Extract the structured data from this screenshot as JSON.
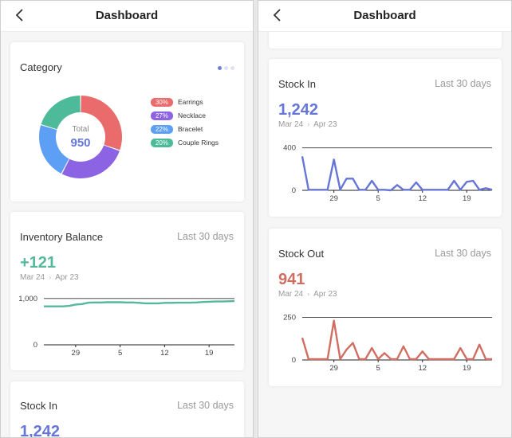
{
  "screens": [
    {
      "nav": {
        "title": "Dashboard"
      },
      "category": {
        "title": "Category",
        "total_label": "Total",
        "total_value": "950",
        "legend": [
          {
            "percent": "30%",
            "label": "Earrings",
            "value": 30,
            "color": "#e96b6b"
          },
          {
            "percent": "27%",
            "label": "Necklace",
            "value": 27,
            "color": "#8c63e3"
          },
          {
            "percent": "22%",
            "label": "Bracelet",
            "value": 22,
            "color": "#5c9ff5"
          },
          {
            "percent": "20%",
            "label": "Couple Rings",
            "value": 20,
            "color": "#4dbb9a"
          }
        ]
      },
      "inventory": {
        "title": "Inventory Balance",
        "period": "Last 30 days",
        "value": "+121",
        "date_from": "Mar 24",
        "date_to": "Apr 23",
        "color": "#55b89a"
      },
      "stock_in_peek": {
        "title": "Stock In",
        "period": "Last 30 days",
        "value": "1,242"
      }
    },
    {
      "nav": {
        "title": "Dashboard"
      },
      "stock_in": {
        "title": "Stock In",
        "period": "Last 30 days",
        "value": "1,242",
        "date_from": "Mar 24",
        "date_to": "Apr 23",
        "color": "#6676d6"
      },
      "stock_out": {
        "title": "Stock Out",
        "period": "Last 30 days",
        "value": "941",
        "date_from": "Mar 24",
        "date_to": "Apr 23",
        "color": "#d16e62"
      }
    }
  ],
  "chart_data": [
    {
      "type": "pie",
      "title": "Category",
      "categories": [
        "Earrings",
        "Necklace",
        "Bracelet",
        "Couple Rings"
      ],
      "values": [
        30,
        27,
        22,
        20
      ],
      "colors": [
        "#e96b6b",
        "#8c63e3",
        "#5c9ff5",
        "#4dbb9a"
      ]
    },
    {
      "type": "line",
      "title": "Inventory Balance",
      "x": [
        24,
        25,
        26,
        27,
        28,
        29,
        30,
        31,
        1,
        2,
        3,
        4,
        5,
        6,
        7,
        8,
        9,
        10,
        11,
        12,
        13,
        14,
        15,
        16,
        17,
        18,
        19,
        20,
        21,
        22,
        23
      ],
      "x_ticks": [
        "29",
        "5",
        "12",
        "19"
      ],
      "y_ticks": [
        "0",
        "1,000"
      ],
      "ylim": [
        0,
        1100
      ],
      "series": [
        {
          "values": [
            830,
            830,
            830,
            830,
            840,
            870,
            880,
            910,
            915,
            915,
            920,
            920,
            920,
            915,
            915,
            905,
            895,
            895,
            895,
            905,
            905,
            910,
            910,
            910,
            915,
            925,
            930,
            935,
            935,
            940,
            945
          ]
        }
      ],
      "color": "#55b89a"
    },
    {
      "type": "line",
      "title": "Stock In",
      "x": [
        24,
        25,
        26,
        27,
        28,
        29,
        30,
        31,
        1,
        2,
        3,
        4,
        5,
        6,
        7,
        8,
        9,
        10,
        11,
        12,
        13,
        14,
        15,
        16,
        17,
        18,
        19,
        20,
        21,
        22,
        23
      ],
      "x_ticks": [
        "29",
        "5",
        "12",
        "19"
      ],
      "y_ticks": [
        "0",
        "400"
      ],
      "ylim": [
        0,
        450
      ],
      "series": [
        {
          "values": [
            320,
            5,
            5,
            5,
            5,
            290,
            5,
            110,
            110,
            5,
            5,
            90,
            5,
            5,
            0,
            50,
            5,
            5,
            75,
            5,
            5,
            5,
            5,
            5,
            90,
            5,
            80,
            90,
            5,
            20,
            5
          ]
        }
      ],
      "color": "#6676d6"
    },
    {
      "type": "line",
      "title": "Stock Out",
      "x": [
        24,
        25,
        26,
        27,
        28,
        29,
        30,
        31,
        1,
        2,
        3,
        4,
        5,
        6,
        7,
        8,
        9,
        10,
        11,
        12,
        13,
        14,
        15,
        16,
        17,
        18,
        19,
        20,
        21,
        22,
        23
      ],
      "x_ticks": [
        "29",
        "5",
        "12",
        "19"
      ],
      "y_ticks": [
        "0",
        "250"
      ],
      "ylim": [
        0,
        280
      ],
      "series": [
        {
          "values": [
            130,
            5,
            5,
            5,
            5,
            230,
            5,
            60,
            100,
            5,
            5,
            70,
            5,
            40,
            5,
            5,
            80,
            5,
            5,
            50,
            5,
            5,
            5,
            5,
            5,
            70,
            5,
            5,
            90,
            5,
            5
          ]
        }
      ],
      "color": "#d16e62"
    }
  ]
}
